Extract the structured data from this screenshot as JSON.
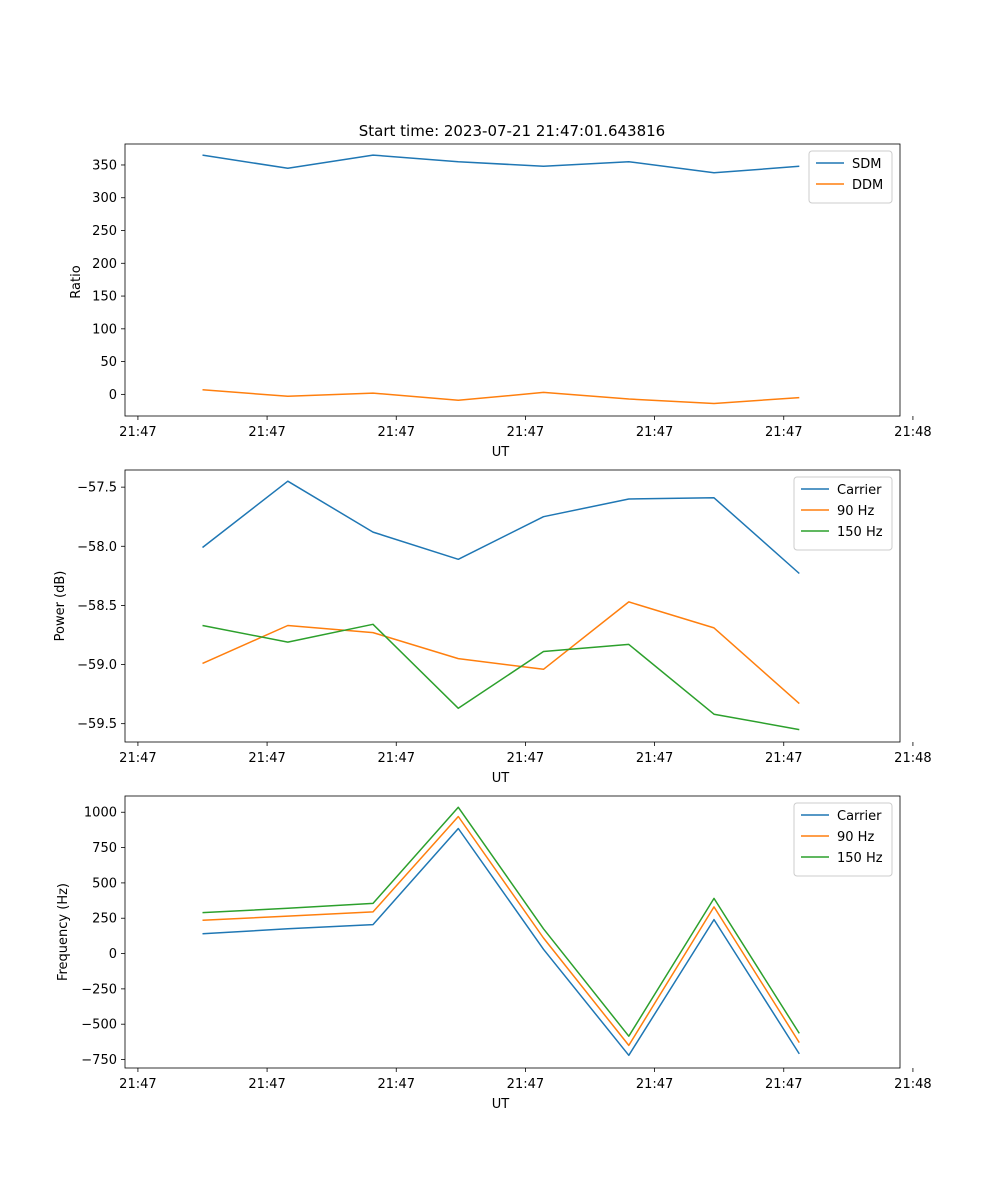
{
  "figure_title": "Start time: 2023-07-21 21:47:01.643816",
  "chart_data": [
    {
      "type": "line",
      "title": "Start time: 2023-07-21 21:47:01.643816",
      "xlabel": "UT",
      "ylabel": "Ratio",
      "xlim": [
        0,
        6.0
      ],
      "x_ticks": [
        0.1,
        1.1,
        2.1,
        3.1,
        4.1,
        5.1,
        6.1
      ],
      "x_tick_labels": [
        "21:47",
        "21:47",
        "21:47",
        "21:47",
        "21:47",
        "21:47",
        "21:48"
      ],
      "ylim": [
        -33,
        382
      ],
      "y_ticks": [
        0,
        50,
        100,
        150,
        200,
        250,
        300,
        350
      ],
      "y_tick_labels": [
        "0",
        "50",
        "100",
        "150",
        "200",
        "250",
        "300",
        "350"
      ],
      "legend_position": "top-right",
      "x": [
        0.6,
        1.26,
        1.92,
        2.58,
        3.24,
        3.9,
        4.56,
        5.22
      ],
      "series": [
        {
          "name": "SDM",
          "color": "#1f77b4",
          "values": [
            365,
            345,
            365,
            355,
            348,
            355,
            338,
            348
          ]
        },
        {
          "name": "DDM",
          "color": "#ff7f0e",
          "values": [
            7,
            -3,
            2,
            -9,
            3,
            -7,
            -14,
            -5
          ]
        }
      ]
    },
    {
      "type": "line",
      "title": "",
      "xlabel": "UT",
      "ylabel": "Power (dB)",
      "xlim": [
        0,
        6.0
      ],
      "x_ticks": [
        0.1,
        1.1,
        2.1,
        3.1,
        4.1,
        5.1,
        6.1
      ],
      "x_tick_labels": [
        "21:47",
        "21:47",
        "21:47",
        "21:47",
        "21:47",
        "21:47",
        "21:48"
      ],
      "ylim": [
        -59.655,
        -57.355
      ],
      "y_ticks": [
        -57.5,
        -58.0,
        -58.5,
        -59.0,
        -59.5
      ],
      "y_tick_labels": [
        "−57.5",
        "−58.0",
        "−58.5",
        "−59.0",
        "−59.5"
      ],
      "legend_position": "top-right",
      "x": [
        0.6,
        1.26,
        1.92,
        2.58,
        3.24,
        3.9,
        4.56,
        5.22
      ],
      "series": [
        {
          "name": "Carrier",
          "color": "#1f77b4",
          "values": [
            -58.01,
            -57.45,
            -57.88,
            -58.11,
            -57.75,
            -57.6,
            -57.59,
            -58.23
          ]
        },
        {
          "name": "90 Hz",
          "color": "#ff7f0e",
          "values": [
            -58.99,
            -58.67,
            -58.73,
            -58.95,
            -59.04,
            -58.47,
            -58.69,
            -59.33
          ]
        },
        {
          "name": "150 Hz",
          "color": "#2ca02c",
          "values": [
            -58.67,
            -58.81,
            -58.66,
            -59.37,
            -58.89,
            -58.83,
            -59.42,
            -59.55
          ]
        }
      ]
    },
    {
      "type": "line",
      "title": "",
      "xlabel": "UT",
      "ylabel": "Frequency (Hz)",
      "xlim": [
        0,
        6.0
      ],
      "x_ticks": [
        0.1,
        1.1,
        2.1,
        3.1,
        4.1,
        5.1,
        6.1
      ],
      "x_tick_labels": [
        "21:47",
        "21:47",
        "21:47",
        "21:47",
        "21:47",
        "21:47",
        "21:48"
      ],
      "ylim": [
        -810,
        1115
      ],
      "y_ticks": [
        1000,
        750,
        500,
        250,
        0,
        -250,
        -500,
        -750
      ],
      "y_tick_labels": [
        "1000",
        "750",
        "500",
        "250",
        "0",
        "−250",
        "−500",
        "−750"
      ],
      "legend_position": "top-right",
      "x": [
        0.6,
        1.26,
        1.92,
        2.58,
        3.24,
        3.9,
        4.56,
        5.22
      ],
      "series": [
        {
          "name": "Carrier",
          "color": "#1f77b4",
          "values": [
            140,
            175,
            205,
            885,
            30,
            -720,
            240,
            -710
          ]
        },
        {
          "name": "90 Hz",
          "color": "#ff7f0e",
          "values": [
            235,
            265,
            295,
            970,
            110,
            -650,
            330,
            -630
          ]
        },
        {
          "name": "150 Hz",
          "color": "#2ca02c",
          "values": [
            290,
            320,
            355,
            1035,
            175,
            -585,
            390,
            -565
          ]
        }
      ]
    }
  ]
}
